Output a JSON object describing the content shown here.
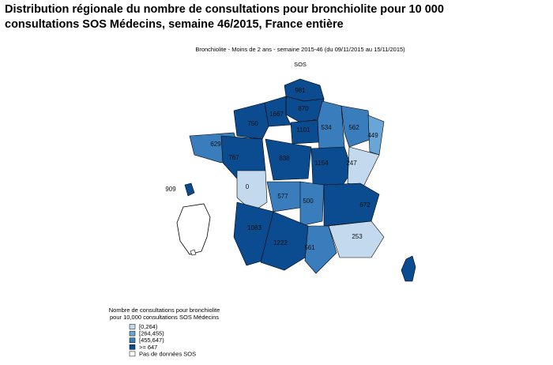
{
  "header": {
    "title": "Distribution régionale du nombre de consultations pour bronchiolite pour 10 000 consultations SOS Médecins, semaine 46/2015, France entière"
  },
  "map": {
    "title": "Bronchiolite - Moins de 2 ans - semaine 2015-46 (du 09/11/2015 au 15/11/2015)",
    "subtitle": "SOS",
    "regions": [
      {
        "value": 981,
        "color": "#0b4b8f"
      },
      {
        "value": 870,
        "color": "#0b4b8f"
      },
      {
        "value": 1667,
        "color": "#0b4b8f"
      },
      {
        "value": 750,
        "color": "#0b4b8f"
      },
      {
        "value": 629,
        "color": "#3a7dbd"
      },
      {
        "value": 1101,
        "color": "#0b4b8f"
      },
      {
        "value": 534,
        "color": "#3a7dbd"
      },
      {
        "value": 562,
        "color": "#3a7dbd"
      },
      {
        "value": 449,
        "color": "#6aa5d8"
      },
      {
        "value": 767,
        "color": "#0b4b8f"
      },
      {
        "value": 838,
        "color": "#0b4b8f"
      },
      {
        "value": 1154,
        "color": "#0b4b8f"
      },
      {
        "value": 247,
        "color": "#c3d9ee"
      },
      {
        "value": 0,
        "color": "#c3d9ee"
      },
      {
        "value": 577,
        "color": "#3a7dbd"
      },
      {
        "value": 500,
        "color": "#3a7dbd"
      },
      {
        "value": 672,
        "color": "#0b4b8f"
      },
      {
        "value": 1083,
        "color": "#0b4b8f"
      },
      {
        "value": 1222,
        "color": "#0b4b8f"
      },
      {
        "value": 561,
        "color": "#3a7dbd"
      },
      {
        "value": 253,
        "color": "#c3d9ee"
      },
      {
        "value": 909,
        "color": "#0b4b8f"
      }
    ],
    "legend": {
      "title": [
        "Nombre de consultations pour bronchiolite",
        "pour 10,000 consultations SOS Médecins"
      ],
      "items": [
        {
          "label": "[0,264)",
          "color": "#c3d9ee"
        },
        {
          "label": "[264,455)",
          "color": "#6aa5d8"
        },
        {
          "label": "[455,647)",
          "color": "#3a7dbd"
        },
        {
          "label": ">= 647",
          "color": "#0b4b8f"
        },
        {
          "label": "Pas de données SOS",
          "color": "#ffffff"
        }
      ]
    }
  }
}
